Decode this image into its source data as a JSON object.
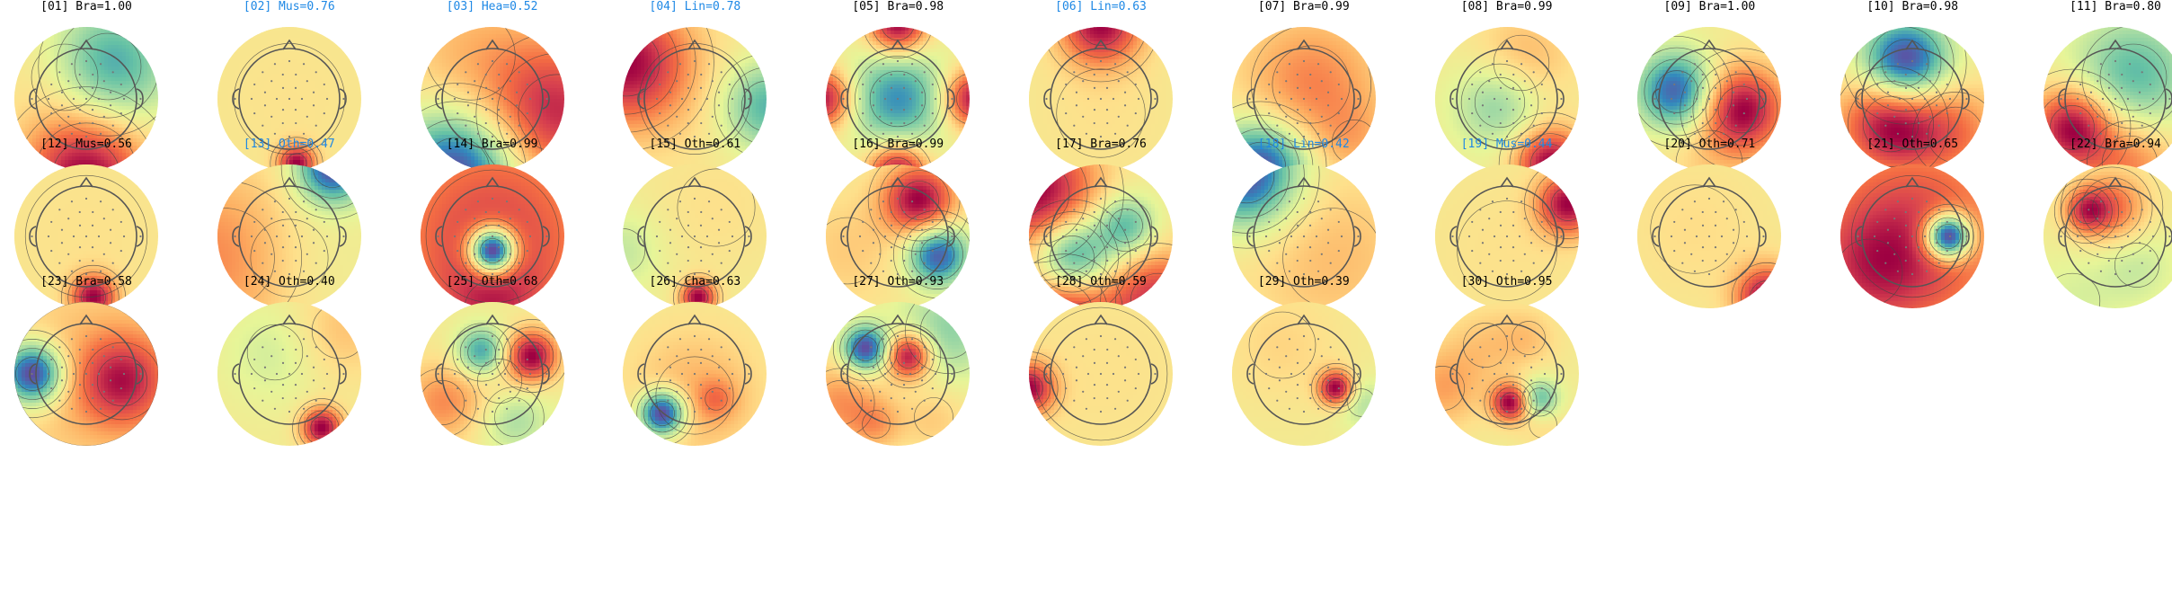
{
  "colors": {
    "accepted_label": "#000000",
    "rejected_label": "#1e88e5",
    "head_outline": "#555555",
    "colormap": [
      "#5e4fa2",
      "#3288bd",
      "#66c2a5",
      "#abdda4",
      "#e6f598",
      "#fee08b",
      "#fdae61",
      "#f46d43",
      "#d53e4f",
      "#9e0142"
    ]
  },
  "components": [
    {
      "label": "[01] Bra=1.00",
      "rejected": false,
      "icon": "topomap-icon"
    },
    {
      "label": "[02] Mus=0.76",
      "rejected": true,
      "icon": "topomap-icon"
    },
    {
      "label": "[03] Hea=0.52",
      "rejected": true,
      "icon": "topomap-icon"
    },
    {
      "label": "[04] Lin=0.78",
      "rejected": true,
      "icon": "topomap-icon"
    },
    {
      "label": "[05] Bra=0.98",
      "rejected": false,
      "icon": "topomap-icon"
    },
    {
      "label": "[06] Lin=0.63",
      "rejected": true,
      "icon": "topomap-icon"
    },
    {
      "label": "[07] Bra=0.99",
      "rejected": false,
      "icon": "topomap-icon"
    },
    {
      "label": "[08] Bra=0.99",
      "rejected": false,
      "icon": "topomap-icon"
    },
    {
      "label": "[09] Bra=1.00",
      "rejected": false,
      "icon": "topomap-icon"
    },
    {
      "label": "[10] Bra=0.98",
      "rejected": false,
      "icon": "topomap-icon"
    },
    {
      "label": "[11] Bra=0.80",
      "rejected": false,
      "icon": "topomap-icon"
    },
    {
      "label": "[12] Mus=0.56",
      "rejected": false,
      "icon": "topomap-icon"
    },
    {
      "label": "[13] Oth=0.47",
      "rejected": true,
      "icon": "topomap-icon"
    },
    {
      "label": "[14] Bra=0.99",
      "rejected": false,
      "icon": "topomap-icon"
    },
    {
      "label": "[15] Oth=0.61",
      "rejected": false,
      "icon": "topomap-icon"
    },
    {
      "label": "[16] Bra=0.99",
      "rejected": false,
      "icon": "topomap-icon"
    },
    {
      "label": "[17] Bra=0.76",
      "rejected": false,
      "icon": "topomap-icon"
    },
    {
      "label": "[18] Lin=0.42",
      "rejected": true,
      "icon": "topomap-icon"
    },
    {
      "label": "[19] Mus=0.44",
      "rejected": true,
      "icon": "topomap-icon"
    },
    {
      "label": "[20] Oth=0.71",
      "rejected": false,
      "icon": "topomap-icon"
    },
    {
      "label": "[21] Oth=0.65",
      "rejected": false,
      "icon": "topomap-icon"
    },
    {
      "label": "[22] Bra=0.94",
      "rejected": false,
      "icon": "topomap-icon"
    },
    {
      "label": "[23] Bra=0.58",
      "rejected": false,
      "icon": "topomap-icon"
    },
    {
      "label": "[24] Oth=0.40",
      "rejected": false,
      "icon": "topomap-icon"
    },
    {
      "label": "[25] Oth=0.68",
      "rejected": false,
      "icon": "topomap-icon"
    },
    {
      "label": "[26] Cha=0.63",
      "rejected": false,
      "icon": "topomap-icon"
    },
    {
      "label": "[27] Oth=0.93",
      "rejected": false,
      "icon": "topomap-icon"
    },
    {
      "label": "[28] Oth=0.59",
      "rejected": false,
      "icon": "topomap-icon"
    },
    {
      "label": "[29] Oth=0.39",
      "rejected": false,
      "icon": "topomap-icon"
    },
    {
      "label": "[30] Oth=0.95",
      "rejected": false,
      "icon": "topomap-icon"
    }
  ]
}
